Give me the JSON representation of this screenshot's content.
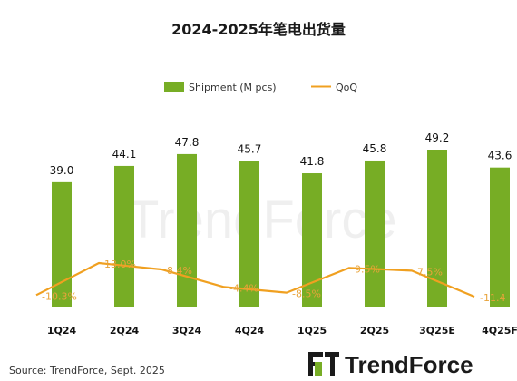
{
  "brand": {
    "name": "TrendForce",
    "watermark": "TrendForce",
    "green": "#77ad25",
    "dark": "#1a1a1a"
  },
  "chart_data": {
    "type": "bar",
    "title": "2024-2025年笔电出货量",
    "categories": [
      "1Q24",
      "2Q24",
      "3Q24",
      "4Q24",
      "1Q25",
      "2Q25",
      "3Q25E",
      "4Q25F"
    ],
    "series": [
      {
        "name": "Shipment (M pcs)",
        "type": "bar",
        "color": "#77ad25",
        "values": [
          39.0,
          44.1,
          47.8,
          45.7,
          41.8,
          45.8,
          49.2,
          43.6
        ],
        "labels": [
          "39.0",
          "44.1",
          "47.8",
          "45.7",
          "41.8",
          "45.8",
          "49.2",
          "43.6"
        ]
      },
      {
        "name": "QoQ",
        "type": "line",
        "color": "#f0a020",
        "values": [
          -10.3,
          13.0,
          8.4,
          -4.4,
          -8.5,
          9.5,
          7.5,
          -11.4
        ],
        "labels": [
          "-10.3%",
          "13.0%",
          "8.4%",
          "-4.4%",
          "-8.5%",
          "9.5%",
          "7.5%",
          "-11.4"
        ]
      }
    ],
    "bar_axis_range": [
      0,
      49.2
    ],
    "qoq_axis_range": [
      -11.4,
      13.0
    ],
    "legend_position": "top-center",
    "grid": false
  },
  "source": "Source: TrendForce, Sept. 2025"
}
